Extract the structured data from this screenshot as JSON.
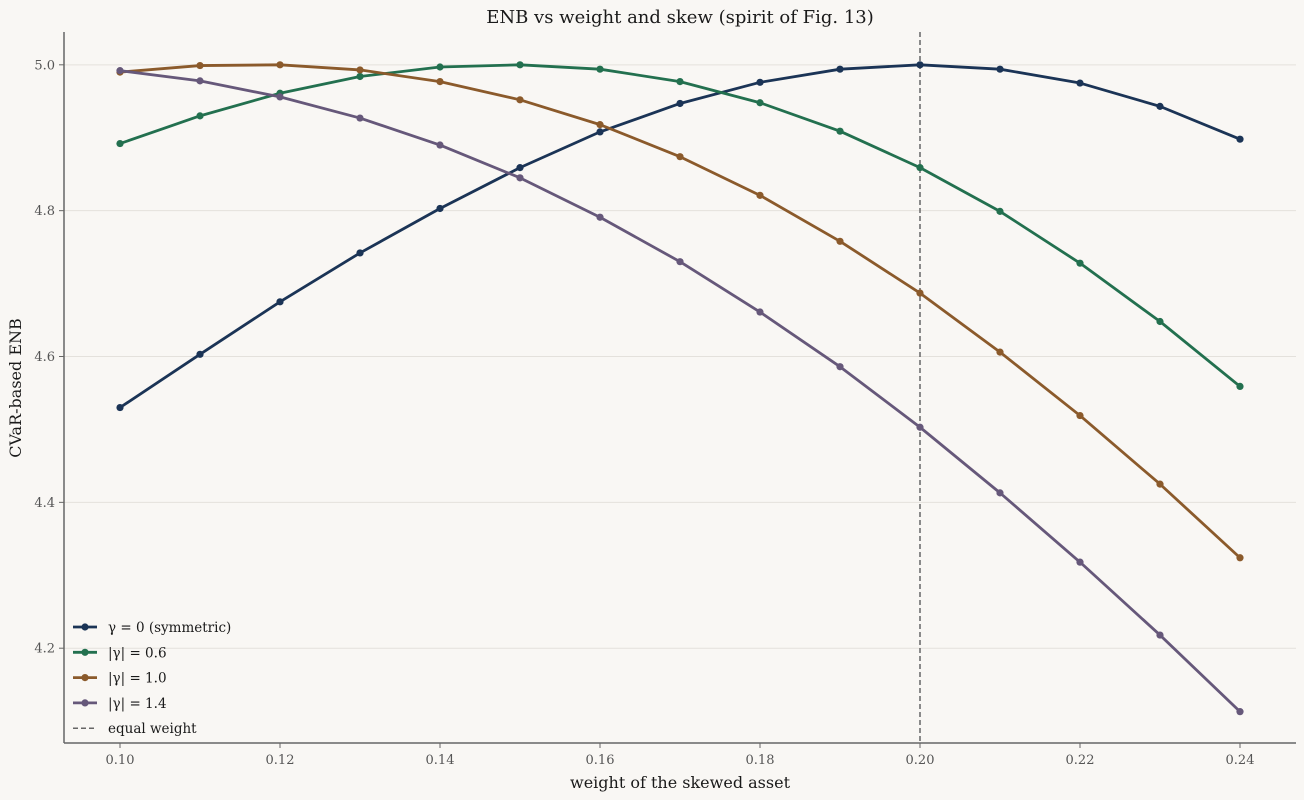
{
  "chart_data": {
    "type": "line",
    "title": "ENB vs weight and skew (spirit of Fig. 13)",
    "xlabel": "weight of the skewed asset",
    "ylabel": "CVaR-based ENB",
    "xlim": [
      0.093,
      0.247
    ],
    "ylim": [
      4.07,
      5.045
    ],
    "x_ticks": [
      "0.10",
      "0.12",
      "0.14",
      "0.16",
      "0.18",
      "0.20",
      "0.22",
      "0.24"
    ],
    "x_tick_values": [
      0.1,
      0.12,
      0.14,
      0.16,
      0.18,
      0.2,
      0.22,
      0.24
    ],
    "y_ticks": [
      "4.2",
      "4.4",
      "4.6",
      "4.8",
      "5.0"
    ],
    "y_tick_values": [
      4.2,
      4.4,
      4.6,
      4.8,
      5.0
    ],
    "grid": "horizontal",
    "legend_position": "bottom-left",
    "reference_line": {
      "label": "equal weight",
      "x": 0.2,
      "color": "#666666"
    },
    "x": [
      0.1,
      0.11,
      0.12,
      0.13,
      0.14,
      0.15,
      0.16,
      0.17,
      0.18,
      0.19,
      0.2,
      0.21,
      0.22,
      0.23,
      0.24
    ],
    "series": [
      {
        "name": "γ = 0 (symmetric)",
        "color": "#1b3456",
        "values": [
          4.53,
          4.603,
          4.675,
          4.742,
          4.803,
          4.859,
          4.908,
          4.947,
          4.976,
          4.994,
          5.0,
          4.994,
          4.975,
          4.943,
          4.898
        ]
      },
      {
        "name": "|γ| = 0.6",
        "color": "#23704f",
        "values": [
          4.892,
          4.93,
          4.961,
          4.984,
          4.997,
          5.0,
          4.994,
          4.977,
          4.948,
          4.909,
          4.859,
          4.799,
          4.728,
          4.648,
          4.559
        ]
      },
      {
        "name": "|γ| = 1.0",
        "color": "#8b5a2b",
        "values": [
          4.99,
          4.999,
          5.0,
          4.993,
          4.977,
          4.952,
          4.918,
          4.874,
          4.821,
          4.758,
          4.687,
          4.606,
          4.519,
          4.425,
          4.324
        ]
      },
      {
        "name": "|γ| = 1.4",
        "color": "#66587a",
        "values": [
          4.992,
          4.978,
          4.956,
          4.927,
          4.89,
          4.845,
          4.791,
          4.73,
          4.661,
          4.586,
          4.503,
          4.413,
          4.318,
          4.218,
          4.113
        ]
      }
    ]
  }
}
